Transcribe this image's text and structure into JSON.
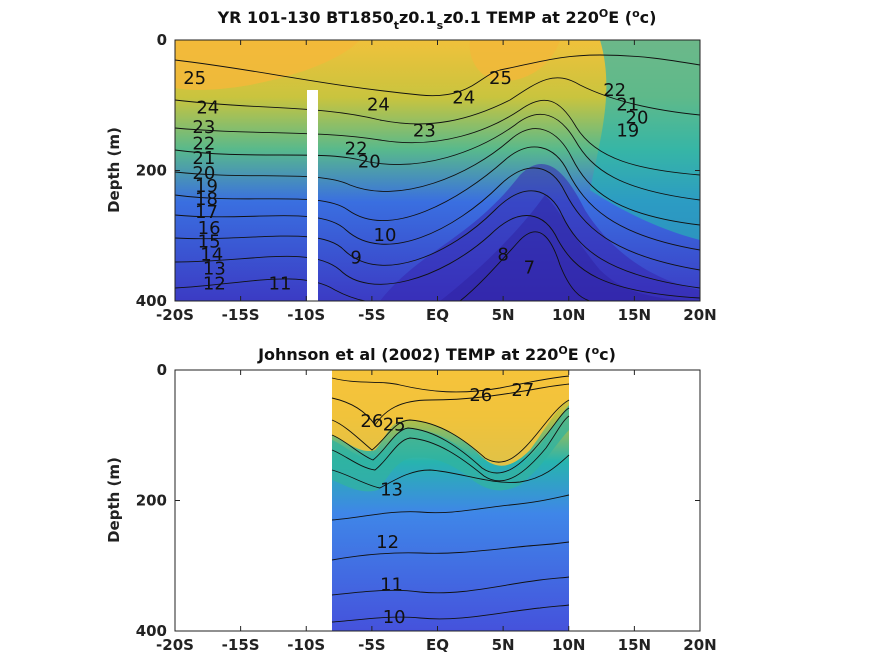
{
  "figure": {
    "titles": [
      {
        "main": "YR 101-130 BT1850",
        "sub1": "t",
        "mid": "z0.1",
        "sub2": "s",
        "rest": "z0.1 TEMP at 220",
        "sup": "O",
        "tail": "E (",
        "sup2": "o",
        "end": "c)"
      },
      {
        "main": "Johnson et al (2002) TEMP at 220",
        "sup": "O",
        "tail": "E (",
        "sup2": "o",
        "end": "c)"
      }
    ]
  },
  "colors": {
    "warm": "#f2bf3a",
    "mid": "#2ab5b0",
    "cool": "#3f4fd8",
    "deep": "#3a2fb8",
    "blank_bar": "#ffffff"
  },
  "chart_data": [
    {
      "type": "heatmap",
      "subtype": "filled-contour",
      "title": "YR 101-130 BT1850_tz0.1_sz0.1 TEMP at 220°E (°c)",
      "xlabel": "",
      "ylabel": "Depth (m)",
      "xlim": [
        -20,
        20
      ],
      "ylim": [
        400,
        0
      ],
      "x_ticks": [
        "-20S",
        "-15S",
        "-10S",
        "-5S",
        "EQ",
        "5N",
        "10N",
        "15N",
        "20N"
      ],
      "y_ticks": [
        "0",
        "200",
        "400"
      ],
      "missing_column_x": -10,
      "contour_labels": [
        {
          "text": "25",
          "x": -18.5,
          "depth": 60
        },
        {
          "text": "24",
          "x": -17.5,
          "depth": 105
        },
        {
          "text": "23",
          "x": -17.8,
          "depth": 135
        },
        {
          "text": "22",
          "x": -17.8,
          "depth": 160
        },
        {
          "text": "21",
          "x": -17.8,
          "depth": 182
        },
        {
          "text": "20",
          "x": -17.8,
          "depth": 205
        },
        {
          "text": "19",
          "x": -17.6,
          "depth": 225
        },
        {
          "text": "18",
          "x": -17.6,
          "depth": 245
        },
        {
          "text": "17",
          "x": -17.6,
          "depth": 265
        },
        {
          "text": "16",
          "x": -17.4,
          "depth": 290
        },
        {
          "text": "15",
          "x": -17.4,
          "depth": 310
        },
        {
          "text": "14",
          "x": -17.2,
          "depth": 330
        },
        {
          "text": "13",
          "x": -17.0,
          "depth": 352
        },
        {
          "text": "12",
          "x": -17.0,
          "depth": 375
        },
        {
          "text": "11",
          "x": -12.0,
          "depth": 375
        },
        {
          "text": "24",
          "x": -4.5,
          "depth": 100
        },
        {
          "text": "23",
          "x": -1.0,
          "depth": 140
        },
        {
          "text": "22",
          "x": -6.2,
          "depth": 168
        },
        {
          "text": "20",
          "x": -5.2,
          "depth": 188
        },
        {
          "text": "10",
          "x": -4.0,
          "depth": 300
        },
        {
          "text": "9",
          "x": -6.2,
          "depth": 335
        },
        {
          "text": "25",
          "x": 4.8,
          "depth": 60
        },
        {
          "text": "24",
          "x": 2.0,
          "depth": 90
        },
        {
          "text": "22",
          "x": 13.5,
          "depth": 78
        },
        {
          "text": "21",
          "x": 14.5,
          "depth": 100
        },
        {
          "text": "20",
          "x": 15.2,
          "depth": 120
        },
        {
          "text": "19",
          "x": 14.5,
          "depth": 140
        },
        {
          "text": "8",
          "x": 5.0,
          "depth": 330
        },
        {
          "text": "7",
          "x": 7.0,
          "depth": 350
        }
      ]
    },
    {
      "type": "heatmap",
      "subtype": "filled-contour",
      "title": "Johnson et al (2002) TEMP at 220°E (°c)",
      "xlabel": "",
      "ylabel": "Depth (m)",
      "xlim": [
        -20,
        20
      ],
      "ylim": [
        400,
        0
      ],
      "data_extent_x": [
        -8,
        10
      ],
      "x_ticks": [
        "-20S",
        "-15S",
        "-10S",
        "-5S",
        "EQ",
        "5N",
        "10N",
        "15N",
        "20N"
      ],
      "y_ticks": [
        "0",
        "200",
        "400"
      ],
      "contour_labels": [
        {
          "text": "26",
          "x": 3.3,
          "depth": 40
        },
        {
          "text": "27",
          "x": 6.5,
          "depth": 32
        },
        {
          "text": "26",
          "x": -5.0,
          "depth": 80
        },
        {
          "text": "25",
          "x": -3.3,
          "depth": 85
        },
        {
          "text": "13",
          "x": -3.5,
          "depth": 185
        },
        {
          "text": "12",
          "x": -3.8,
          "depth": 265
        },
        {
          "text": "11",
          "x": -3.5,
          "depth": 330
        },
        {
          "text": "10",
          "x": -3.3,
          "depth": 380
        }
      ]
    }
  ]
}
